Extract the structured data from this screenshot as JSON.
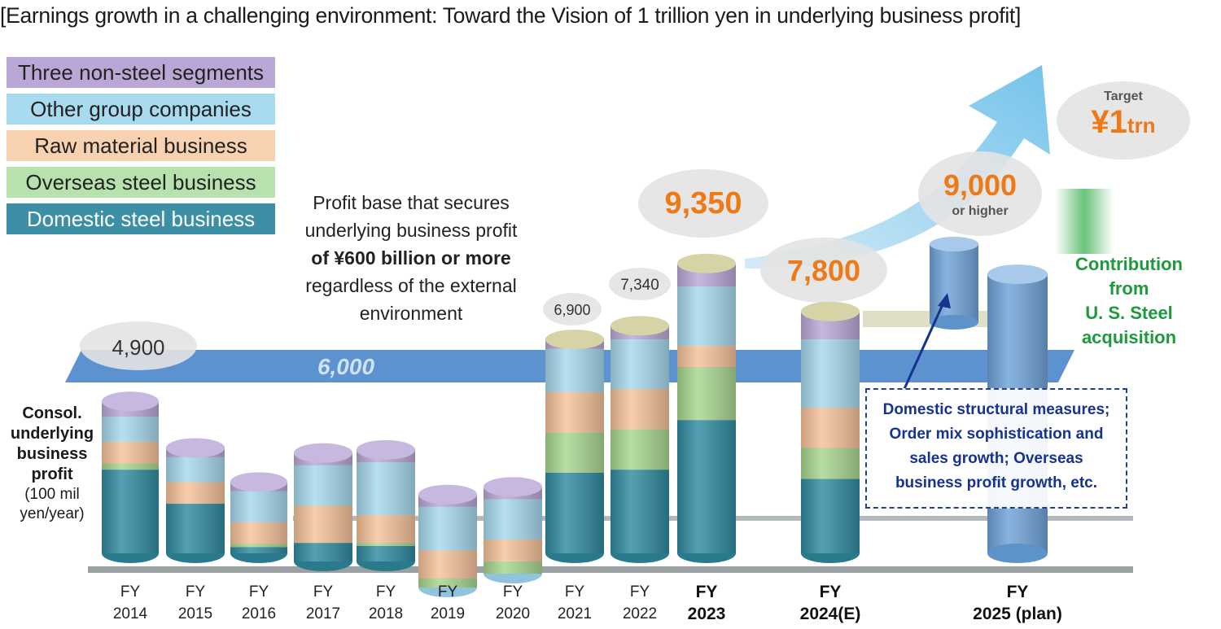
{
  "title": "[Earnings growth in a challenging environment: Toward the Vision of 1 trillion yen in underlying business profit]",
  "legend": [
    {
      "label": "Three non-steel segments",
      "color": "#b6a6d3"
    },
    {
      "label": "Other group companies",
      "color": "#a8daf0"
    },
    {
      "label": "Raw material business",
      "color": "#f7c9a2"
    },
    {
      "label": "Overseas steel business",
      "color": "#a9d99b"
    },
    {
      "label": "Domestic steel business",
      "color": "#3c8fa4"
    }
  ],
  "y_axis_label": {
    "title_lines": [
      "Consol.",
      "underlying",
      "business",
      "profit"
    ],
    "unit_lines": [
      "(100 mil",
      "yen/year)"
    ]
  },
  "baseline_label": "6,000",
  "note": {
    "line1": "Profit base that secures",
    "line2": "underlying business profit",
    "strong": "of ¥600 billion or more",
    "line3": "regardless of the external",
    "line4": "environment"
  },
  "measures_box": {
    "lines": [
      "Domestic structural measures;",
      "Order mix sophistication and",
      "sales growth; Overseas",
      "business profit growth, etc."
    ]
  },
  "contribution": {
    "lines": [
      "Contribution",
      "from",
      "U. S. Steel",
      "acquisition"
    ]
  },
  "target": {
    "caption": "Target",
    "value": "¥1",
    "unit": "trn"
  },
  "chart_data": {
    "type": "bar",
    "stacked": true,
    "categories": [
      "FY 2014",
      "FY 2015",
      "FY 2016",
      "FY 2017",
      "FY 2018",
      "FY 2019",
      "FY 2020",
      "FY 2021",
      "FY 2022",
      "FY 2023",
      "FY 2024(E)",
      "FY 2025 (plan)"
    ],
    "category_lines": [
      [
        "FY",
        "2014"
      ],
      [
        "FY",
        "2015"
      ],
      [
        "FY",
        "2016"
      ],
      [
        "FY",
        "2017"
      ],
      [
        "FY",
        "2018"
      ],
      [
        "FY",
        "2019"
      ],
      [
        "FY",
        "2020"
      ],
      [
        "FY",
        "2021"
      ],
      [
        "FY",
        "2022"
      ],
      [
        "FY",
        "2023"
      ],
      [
        "FY",
        "2024(E)"
      ],
      [
        "FY",
        "2025 (plan)"
      ]
    ],
    "bold_categories": [
      "FY 2023",
      "FY 2024(E)",
      "FY 2025 (plan)"
    ],
    "value_labels": [
      "4,900",
      "",
      "",
      "",
      "",
      "",
      "",
      "6,900",
      "7,340",
      "9,350",
      "7,800",
      "9,000"
    ],
    "value_sublabels": [
      "",
      "",
      "",
      "",
      "",
      "",
      "",
      "",
      "",
      "",
      "",
      "or higher"
    ],
    "totals": [
      4900,
      3400,
      2300,
      3500,
      3600,
      3000,
      2800,
      6900,
      7340,
      9350,
      7800,
      9000
    ],
    "series": [
      {
        "name": "Domestic steel business",
        "color": "#2f8aa0",
        "values": [
          2700,
          1600,
          200,
          600,
          500,
          0,
          0,
          2600,
          2700,
          4300,
          2400,
          0
        ]
      },
      {
        "name": "Overseas steel business",
        "color": "#a8d68f",
        "values": [
          200,
          0,
          100,
          0,
          100,
          300,
          400,
          1300,
          1300,
          1700,
          1000,
          0
        ]
      },
      {
        "name": "Raw material business",
        "color": "#f5c29a",
        "values": [
          700,
          700,
          700,
          1200,
          900,
          900,
          700,
          1300,
          1300,
          700,
          1300,
          0
        ]
      },
      {
        "name": "Other group companies",
        "color": "#a6d8ec",
        "values": [
          800,
          800,
          1000,
          1300,
          1700,
          1400,
          1300,
          1400,
          1600,
          1900,
          2200,
          9000
        ]
      },
      {
        "name": "Three non-steel segments",
        "color": "#b9a8d6",
        "values": [
          500,
          300,
          300,
          400,
          400,
          400,
          400,
          300,
          440,
          750,
          900,
          0
        ]
      }
    ],
    "y_reference": 6000,
    "ylim": [
      0,
      10000
    ],
    "ylabel": "Consol. underlying business profit (100 mil yen/year)"
  }
}
